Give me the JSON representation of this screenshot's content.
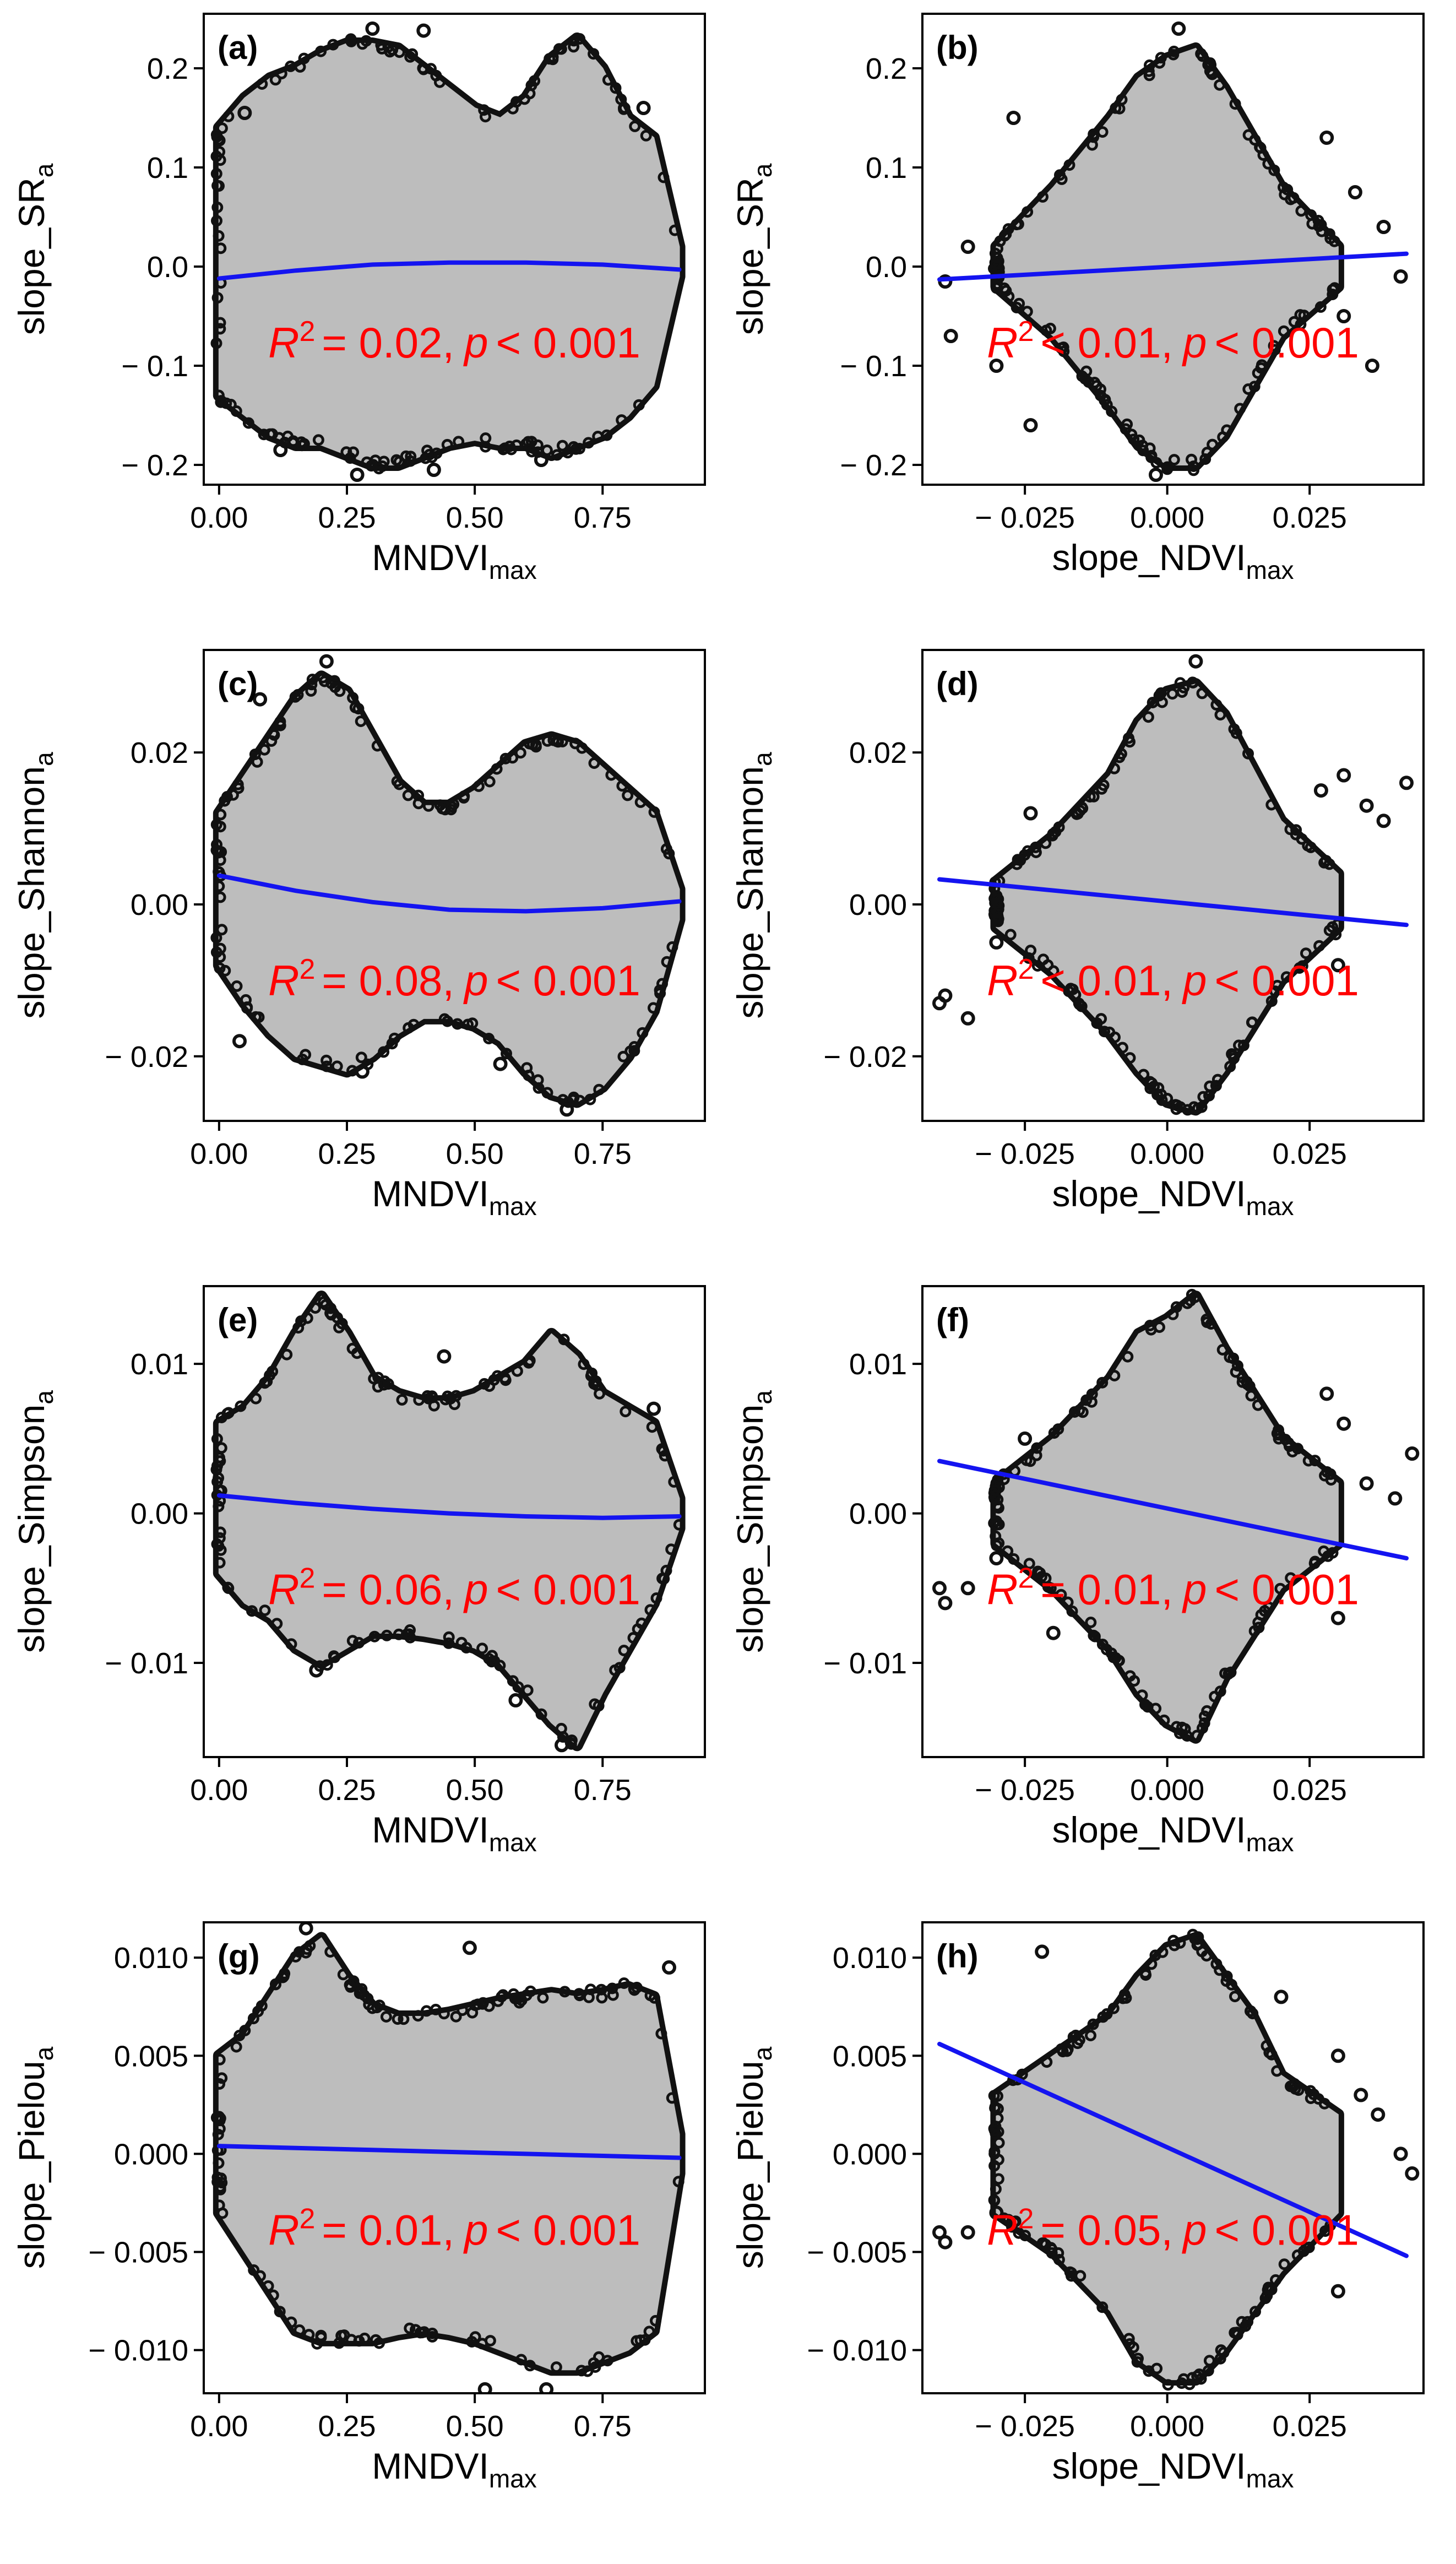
{
  "chart_data": [
    {
      "panel": "(a)",
      "type": "scatter",
      "xlabel": "MNDVI",
      "xlabel_sub": "max",
      "ylabel": "slope_SR",
      "ylabel_sub": "a",
      "xlim": [
        -0.03,
        0.95
      ],
      "ylim": [
        -0.22,
        0.255
      ],
      "xticks": [
        0,
        0.25,
        0.5,
        0.75
      ],
      "xtick_labels": [
        "0.00",
        "0.25",
        "0.50",
        "0.75"
      ],
      "yticks": [
        0.2,
        0.1,
        0.0,
        -0.1,
        -0.2
      ],
      "ytick_labels": [
        "0.2",
        "0.1",
        "0.0",
        "− 0.1",
        "− 0.2"
      ],
      "fit": {
        "x": [
          0,
          0.15,
          0.3,
          0.45,
          0.6,
          0.75,
          0.9
        ],
        "y": [
          -0.012,
          -0.004,
          0.002,
          0.004,
          0.004,
          0.002,
          -0.003
        ]
      },
      "stat": {
        "r2_op": "= 0.02,",
        "p_text": "< 0.001"
      },
      "envelope": {
        "x": [
          0,
          0.05,
          0.1,
          0.15,
          0.2,
          0.25,
          0.3,
          0.35,
          0.4,
          0.45,
          0.5,
          0.55,
          0.6,
          0.65,
          0.7,
          0.75,
          0.8,
          0.85,
          0.9
        ],
        "upper": [
          0.14,
          0.17,
          0.19,
          0.2,
          0.215,
          0.225,
          0.225,
          0.22,
          0.2,
          0.18,
          0.16,
          0.15,
          0.17,
          0.21,
          0.23,
          0.2,
          0.15,
          0.13,
          0.02
        ],
        "lower": [
          -0.13,
          -0.15,
          -0.17,
          -0.18,
          -0.18,
          -0.19,
          -0.2,
          -0.2,
          -0.19,
          -0.18,
          -0.175,
          -0.18,
          -0.18,
          -0.19,
          -0.18,
          -0.17,
          -0.15,
          -0.12,
          -0.01
        ]
      },
      "outliers": [
        [
          0.3,
          0.24
        ],
        [
          0.4,
          0.238
        ],
        [
          0.27,
          -0.21
        ],
        [
          0.42,
          -0.205
        ],
        [
          0.05,
          0.155
        ],
        [
          0.63,
          -0.195
        ],
        [
          0.83,
          0.16
        ],
        [
          0.12,
          -0.185
        ]
      ]
    },
    {
      "panel": "(b)",
      "type": "scatter",
      "xlabel": "slope_NDVI",
      "xlabel_sub": "max",
      "ylabel": "slope_SR",
      "ylabel_sub": "a",
      "xlim": [
        -0.043,
        0.045
      ],
      "ylim": [
        -0.22,
        0.255
      ],
      "xticks": [
        -0.025,
        0,
        0.025
      ],
      "xtick_labels": [
        "− 0.025",
        "0.000",
        "0.025"
      ],
      "yticks": [
        0.2,
        0.1,
        0.0,
        -0.1,
        -0.2
      ],
      "ytick_labels": [
        "0.2",
        "0.1",
        "0.0",
        "− 0.1",
        "− 0.2"
      ],
      "fit": {
        "x": [
          -0.04,
          0.042
        ],
        "y": [
          -0.013,
          0.013
        ]
      },
      "stat": {
        "r2_op": "< 0.01,",
        "p_text": "< 0.001"
      },
      "envelope": {
        "x": [
          -0.03,
          -0.02,
          -0.01,
          -0.005,
          0,
          0.005,
          0.01,
          0.015,
          0.02,
          0.03
        ],
        "upper": [
          0.02,
          0.08,
          0.15,
          0.19,
          0.21,
          0.22,
          0.18,
          0.13,
          0.08,
          0.02
        ],
        "lower": [
          -0.02,
          -0.07,
          -0.14,
          -0.18,
          -0.2,
          -0.2,
          -0.17,
          -0.12,
          -0.07,
          -0.02
        ]
      },
      "outliers": [
        [
          -0.039,
          -0.015
        ],
        [
          -0.038,
          -0.07
        ],
        [
          -0.035,
          0.02
        ],
        [
          -0.027,
          0.15
        ],
        [
          -0.024,
          -0.16
        ],
        [
          0.031,
          -0.05
        ],
        [
          0.033,
          0.075
        ],
        [
          0.036,
          -0.1
        ],
        [
          0.041,
          -0.01
        ],
        [
          0.038,
          0.04
        ],
        [
          -0.03,
          -0.1
        ],
        [
          0.028,
          0.13
        ],
        [
          0.002,
          0.24
        ],
        [
          -0.002,
          -0.21
        ]
      ]
    },
    {
      "panel": "(c)",
      "type": "scatter",
      "xlabel": "MNDVI",
      "xlabel_sub": "max",
      "ylabel": "slope_Shannon",
      "ylabel_sub": "a",
      "xlim": [
        -0.03,
        0.95
      ],
      "ylim": [
        -0.0285,
        0.0335
      ],
      "xticks": [
        0,
        0.25,
        0.5,
        0.75
      ],
      "xtick_labels": [
        "0.00",
        "0.25",
        "0.50",
        "0.75"
      ],
      "yticks": [
        0.02,
        0.0,
        -0.02
      ],
      "ytick_labels": [
        "0.02",
        "0.00",
        "− 0.02"
      ],
      "fit": {
        "x": [
          0,
          0.15,
          0.3,
          0.45,
          0.6,
          0.75,
          0.9
        ],
        "y": [
          0.0038,
          0.0018,
          0.0003,
          -0.0007,
          -0.0009,
          -0.0005,
          0.0004
        ]
      },
      "stat": {
        "r2_op": "= 0.08,",
        "p_text": "< 0.001"
      },
      "envelope": {
        "x": [
          0,
          0.05,
          0.1,
          0.15,
          0.2,
          0.25,
          0.3,
          0.35,
          0.4,
          0.45,
          0.5,
          0.55,
          0.6,
          0.65,
          0.7,
          0.75,
          0.8,
          0.85,
          0.9
        ],
        "upper": [
          0.012,
          0.017,
          0.022,
          0.027,
          0.03,
          0.028,
          0.022,
          0.016,
          0.013,
          0.013,
          0.015,
          0.018,
          0.021,
          0.022,
          0.021,
          0.018,
          0.015,
          0.012,
          0.002
        ],
        "lower": [
          -0.008,
          -0.013,
          -0.017,
          -0.02,
          -0.021,
          -0.022,
          -0.02,
          -0.017,
          -0.015,
          -0.015,
          -0.016,
          -0.018,
          -0.022,
          -0.025,
          -0.026,
          -0.024,
          -0.02,
          -0.014,
          -0.002
        ]
      },
      "outliers": [
        [
          0.21,
          0.032
        ],
        [
          0.08,
          0.027
        ],
        [
          0.68,
          -0.027
        ],
        [
          0.28,
          -0.022
        ],
        [
          0.55,
          -0.021
        ],
        [
          0.04,
          -0.018
        ]
      ]
    },
    {
      "panel": "(d)",
      "type": "scatter",
      "xlabel": "slope_NDVI",
      "xlabel_sub": "max",
      "ylabel": "slope_Shannon",
      "ylabel_sub": "a",
      "xlim": [
        -0.043,
        0.045
      ],
      "ylim": [
        -0.0285,
        0.0335
      ],
      "xticks": [
        -0.025,
        0,
        0.025
      ],
      "xtick_labels": [
        "− 0.025",
        "0.000",
        "0.025"
      ],
      "yticks": [
        0.02,
        0.0,
        -0.02
      ],
      "ytick_labels": [
        "0.02",
        "0.00",
        "− 0.02"
      ],
      "fit": {
        "x": [
          -0.04,
          0.042
        ],
        "y": [
          0.0033,
          -0.0027
        ]
      },
      "stat": {
        "r2_op": "< 0.01,",
        "p_text": "< 0.001"
      },
      "envelope": {
        "x": [
          -0.03,
          -0.02,
          -0.01,
          -0.005,
          0,
          0.005,
          0.01,
          0.015,
          0.02,
          0.03
        ],
        "upper": [
          0.003,
          0.009,
          0.017,
          0.024,
          0.028,
          0.029,
          0.025,
          0.018,
          0.011,
          0.004
        ],
        "lower": [
          -0.003,
          -0.009,
          -0.017,
          -0.022,
          -0.026,
          -0.027,
          -0.022,
          -0.016,
          -0.01,
          -0.003
        ]
      },
      "outliers": [
        [
          -0.04,
          -0.013
        ],
        [
          -0.039,
          -0.012
        ],
        [
          -0.035,
          -0.015
        ],
        [
          -0.03,
          -0.005
        ],
        [
          -0.024,
          0.012
        ],
        [
          0.027,
          0.015
        ],
        [
          0.031,
          0.017
        ],
        [
          0.035,
          0.013
        ],
        [
          0.038,
          0.011
        ],
        [
          0.042,
          0.016
        ],
        [
          0.03,
          -0.008
        ],
        [
          0.005,
          0.032
        ]
      ]
    },
    {
      "panel": "(e)",
      "type": "scatter",
      "xlabel": "MNDVI",
      "xlabel_sub": "max",
      "ylabel": "slope_Simpson",
      "ylabel_sub": "a",
      "xlim": [
        -0.03,
        0.95
      ],
      "ylim": [
        -0.0163,
        0.0152
      ],
      "xticks": [
        0,
        0.25,
        0.5,
        0.75
      ],
      "xtick_labels": [
        "0.00",
        "0.25",
        "0.50",
        "0.75"
      ],
      "yticks": [
        0.01,
        0.0,
        -0.01
      ],
      "ytick_labels": [
        "0.01",
        "0.00",
        "− 0.01"
      ],
      "fit": {
        "x": [
          0,
          0.15,
          0.3,
          0.45,
          0.6,
          0.75,
          0.9
        ],
        "y": [
          0.0012,
          0.0007,
          0.0003,
          0.0,
          -0.0002,
          -0.0003,
          -0.0002
        ]
      },
      "stat": {
        "r2_op": "= 0.06,",
        "p_text": "< 0.001"
      },
      "envelope": {
        "x": [
          0,
          0.05,
          0.1,
          0.15,
          0.2,
          0.25,
          0.3,
          0.35,
          0.4,
          0.45,
          0.5,
          0.55,
          0.6,
          0.65,
          0.7,
          0.75,
          0.8,
          0.85,
          0.9
        ],
        "upper": [
          0.006,
          0.007,
          0.009,
          0.012,
          0.0145,
          0.012,
          0.009,
          0.008,
          0.0075,
          0.0075,
          0.008,
          0.009,
          0.01,
          0.012,
          0.0105,
          0.008,
          0.007,
          0.006,
          0.001
        ],
        "lower": [
          -0.004,
          -0.006,
          -0.007,
          -0.009,
          -0.01,
          -0.009,
          -0.008,
          -0.008,
          -0.0082,
          -0.0085,
          -0.009,
          -0.01,
          -0.012,
          -0.014,
          -0.0155,
          -0.012,
          -0.009,
          -0.006,
          -0.001
        ]
      },
      "outliers": [
        [
          0.67,
          -0.0155
        ],
        [
          0.19,
          -0.0105
        ],
        [
          0.58,
          -0.0125
        ],
        [
          0.44,
          0.0105
        ],
        [
          0.85,
          0.007
        ]
      ]
    },
    {
      "panel": "(f)",
      "type": "scatter",
      "xlabel": "slope_NDVI",
      "xlabel_sub": "max",
      "ylabel": "slope_Simpson",
      "ylabel_sub": "a",
      "xlim": [
        -0.043,
        0.045
      ],
      "ylim": [
        -0.0163,
        0.0152
      ],
      "xticks": [
        -0.025,
        0,
        0.025
      ],
      "xtick_labels": [
        "− 0.025",
        "0.000",
        "0.025"
      ],
      "yticks": [
        0.01,
        0.0,
        -0.01
      ],
      "ytick_labels": [
        "0.01",
        "0.00",
        "− 0.01"
      ],
      "fit": {
        "x": [
          -0.04,
          0.042
        ],
        "y": [
          0.0035,
          -0.003
        ]
      },
      "stat": {
        "r2_op": "= 0.01,",
        "p_text": "< 0.001"
      },
      "envelope": {
        "x": [
          -0.03,
          -0.02,
          -0.01,
          -0.005,
          0,
          0.005,
          0.01,
          0.015,
          0.02,
          0.03
        ],
        "upper": [
          0.002,
          0.005,
          0.009,
          0.012,
          0.013,
          0.0145,
          0.011,
          0.008,
          0.005,
          0.002
        ],
        "lower": [
          -0.002,
          -0.005,
          -0.009,
          -0.012,
          -0.014,
          -0.015,
          -0.011,
          -0.008,
          -0.005,
          -0.002
        ]
      },
      "outliers": [
        [
          -0.04,
          -0.005
        ],
        [
          -0.039,
          -0.006
        ],
        [
          -0.035,
          -0.005
        ],
        [
          -0.03,
          -0.003
        ],
        [
          -0.025,
          0.005
        ],
        [
          -0.02,
          -0.008
        ],
        [
          0.028,
          0.008
        ],
        [
          0.031,
          0.006
        ],
        [
          0.035,
          0.002
        ],
        [
          0.04,
          0.001
        ],
        [
          0.043,
          0.004
        ],
        [
          0.03,
          -0.007
        ]
      ]
    },
    {
      "panel": "(g)",
      "type": "scatter",
      "xlabel": "MNDVI",
      "xlabel_sub": "max",
      "ylabel": "slope_Pielou",
      "ylabel_sub": "a",
      "xlim": [
        -0.03,
        0.95
      ],
      "ylim": [
        -0.0122,
        0.0118
      ],
      "xticks": [
        0,
        0.25,
        0.5,
        0.75
      ],
      "xtick_labels": [
        "0.00",
        "0.25",
        "0.50",
        "0.75"
      ],
      "yticks": [
        0.01,
        0.005,
        0.0,
        -0.005,
        -0.01
      ],
      "ytick_labels": [
        "0.010",
        "0.005",
        "0.000",
        "− 0.005",
        "− 0.010"
      ],
      "fit": {
        "x": [
          0,
          0.3,
          0.6,
          0.9
        ],
        "y": [
          0.0004,
          0.0002,
          0.0,
          -0.0002
        ]
      },
      "stat": {
        "r2_op": "= 0.01,",
        "p_text": "< 0.001"
      },
      "envelope": {
        "x": [
          0,
          0.05,
          0.1,
          0.15,
          0.2,
          0.25,
          0.3,
          0.35,
          0.4,
          0.45,
          0.5,
          0.55,
          0.6,
          0.65,
          0.7,
          0.75,
          0.8,
          0.85,
          0.9
        ],
        "upper": [
          0.005,
          0.006,
          0.008,
          0.01,
          0.011,
          0.009,
          0.0075,
          0.007,
          0.007,
          0.0072,
          0.0075,
          0.0078,
          0.008,
          0.0082,
          0.008,
          0.0082,
          0.0085,
          0.008,
          0.001
        ],
        "lower": [
          -0.003,
          -0.005,
          -0.007,
          -0.009,
          -0.0095,
          -0.0095,
          -0.0095,
          -0.0092,
          -0.009,
          -0.0092,
          -0.0095,
          -0.01,
          -0.0105,
          -0.011,
          -0.011,
          -0.0105,
          -0.01,
          -0.009,
          -0.001
        ]
      },
      "outliers": [
        [
          0.17,
          0.0115
        ],
        [
          0.52,
          -0.012
        ],
        [
          0.64,
          -0.012
        ],
        [
          0.49,
          0.0105
        ],
        [
          0.88,
          0.0095
        ]
      ]
    },
    {
      "panel": "(h)",
      "type": "scatter",
      "xlabel": "slope_NDVI",
      "xlabel_sub": "max",
      "ylabel": "slope_Pielou",
      "ylabel_sub": "a",
      "xlim": [
        -0.043,
        0.045
      ],
      "ylim": [
        -0.0122,
        0.0118
      ],
      "xticks": [
        -0.025,
        0,
        0.025
      ],
      "xtick_labels": [
        "− 0.025",
        "0.000",
        "0.025"
      ],
      "yticks": [
        0.01,
        0.005,
        0.0,
        -0.005,
        -0.01
      ],
      "ytick_labels": [
        "0.010",
        "0.005",
        "0.000",
        "− 0.005",
        "− 0.010"
      ],
      "fit": {
        "x": [
          -0.04,
          0.042
        ],
        "y": [
          0.0056,
          -0.0052
        ]
      },
      "stat": {
        "r2_op": "= 0.05,",
        "p_text": "< 0.001"
      },
      "envelope": {
        "x": [
          -0.03,
          -0.02,
          -0.01,
          -0.005,
          0,
          0.005,
          0.01,
          0.015,
          0.02,
          0.03
        ],
        "upper": [
          0.003,
          0.005,
          0.007,
          0.009,
          0.0105,
          0.011,
          0.009,
          0.007,
          0.004,
          0.002
        ],
        "lower": [
          -0.003,
          -0.005,
          -0.008,
          -0.0105,
          -0.0115,
          -0.0115,
          -0.01,
          -0.008,
          -0.006,
          -0.003
        ]
      },
      "outliers": [
        [
          -0.04,
          -0.004
        ],
        [
          -0.039,
          -0.0045
        ],
        [
          -0.035,
          -0.004
        ],
        [
          -0.03,
          -0.003
        ],
        [
          -0.022,
          0.0103
        ],
        [
          0.03,
          0.005
        ],
        [
          0.034,
          0.003
        ],
        [
          0.037,
          0.002
        ],
        [
          0.041,
          0.0
        ],
        [
          0.043,
          -0.001
        ],
        [
          0.03,
          -0.007
        ],
        [
          0.02,
          0.008
        ]
      ]
    }
  ],
  "colors": {
    "fit": "#1414f0",
    "stat": "#ff0000",
    "cloud": "#bdbdbd",
    "edge": "#111111"
  }
}
